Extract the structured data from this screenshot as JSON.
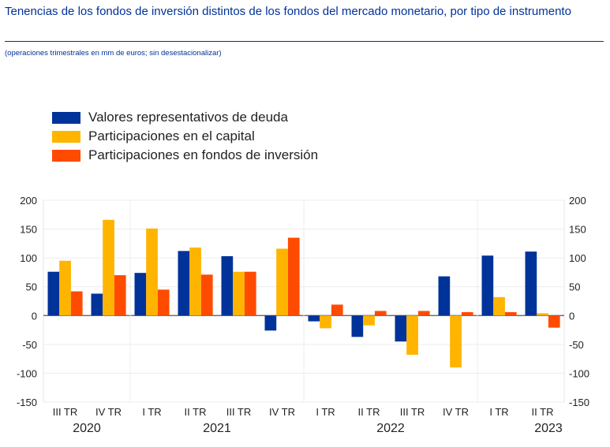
{
  "title": "Tenencias de los fondos de inversión distintos de los fondos del mercado monetario, por tipo de instrumento",
  "subtitle": "(operaciones trimestrales en mm de euros; sin desestacionalizar)",
  "chart_data": {
    "type": "bar",
    "title": "Tenencias de los fondos de inversión distintos de los fondos del mercado monetario, por tipo de instrumento",
    "subtitle": "(operaciones trimestrales en mm de euros; sin desestacionalizar)",
    "categories": [
      "III TR",
      "IV TR",
      "I TR",
      "II TR",
      "III TR",
      "IV TR",
      "I TR",
      "II TR",
      "III TR",
      "IV TR",
      "I TR",
      "II TR"
    ],
    "years": [
      {
        "label": "2020",
        "from": 0,
        "to": 1
      },
      {
        "label": "2021",
        "from": 2,
        "to": 5
      },
      {
        "label": "2022",
        "from": 6,
        "to": 9
      },
      {
        "label": "2023",
        "from": 10,
        "to": 11
      }
    ],
    "series": [
      {
        "name": "Valores representativos de deuda",
        "color": "#003399",
        "values": [
          76,
          38,
          74,
          112,
          103,
          -26,
          -10,
          -37,
          -45,
          68,
          104,
          111
        ]
      },
      {
        "name": "Participaciones en el capital",
        "color": "#FFB400",
        "values": [
          95,
          166,
          151,
          118,
          76,
          116,
          -22,
          -17,
          -68,
          -90,
          32,
          4
        ]
      },
      {
        "name": "Participaciones en fondos de inversión",
        "color": "#FF4B00",
        "values": [
          42,
          70,
          45,
          71,
          76,
          135,
          19,
          8,
          8,
          6,
          6,
          -21
        ]
      }
    ],
    "ylim": [
      -150,
      200
    ],
    "yticks": [
      200,
      150,
      100,
      50,
      0,
      -50,
      -100,
      -150
    ],
    "grid": true,
    "legend": "top-left",
    "xlabel": "",
    "ylabel": ""
  }
}
